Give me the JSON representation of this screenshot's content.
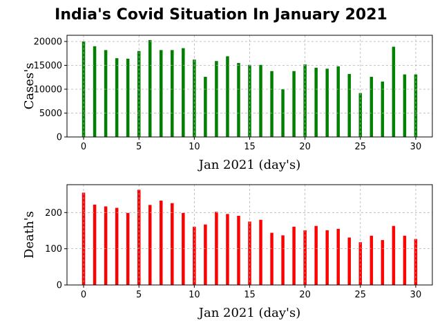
{
  "title": "India's Covid Situation In January 2021",
  "chart_data": [
    {
      "type": "bar",
      "xlabel": "Jan 2021 (day's)",
      "ylabel": "Cases's",
      "color": "#008000",
      "x": [
        0,
        1,
        2,
        3,
        4,
        5,
        6,
        7,
        8,
        9,
        10,
        11,
        12,
        13,
        14,
        15,
        16,
        17,
        18,
        19,
        20,
        21,
        22,
        23,
        24,
        25,
        26,
        27,
        28,
        29,
        30
      ],
      "values": [
        20000,
        19000,
        18200,
        16500,
        16400,
        18000,
        20300,
        18200,
        18200,
        18600,
        16200,
        12600,
        15900,
        16900,
        15500,
        15100,
        15100,
        13800,
        10000,
        13800,
        15200,
        14500,
        14300,
        14800,
        13200,
        9200,
        12600,
        11600,
        18900,
        13100,
        13100
      ],
      "xticks": [
        0,
        5,
        10,
        15,
        20,
        25,
        30
      ],
      "yticks": [
        0,
        5000,
        10000,
        15000,
        20000
      ],
      "xlim": [
        -1.5,
        31.5
      ],
      "ylim": [
        0,
        21300
      ],
      "grid": true
    },
    {
      "type": "bar",
      "xlabel": "Jan 2021 (day's)",
      "ylabel": "Death's",
      "color": "#ff0000",
      "x": [
        0,
        1,
        2,
        3,
        4,
        5,
        6,
        7,
        8,
        9,
        10,
        11,
        12,
        13,
        14,
        15,
        16,
        17,
        18,
        19,
        20,
        21,
        22,
        23,
        24,
        25,
        26,
        27,
        28,
        29,
        30
      ],
      "values": [
        255,
        222,
        217,
        213,
        199,
        263,
        221,
        233,
        226,
        199,
        161,
        167,
        202,
        196,
        191,
        175,
        180,
        144,
        137,
        161,
        151,
        163,
        151,
        155,
        131,
        118,
        136,
        124,
        163,
        136,
        127
      ],
      "xticks": [
        0,
        5,
        10,
        15,
        20,
        25,
        30
      ],
      "yticks": [
        0,
        100,
        200
      ],
      "xlim": [
        -1.5,
        31.5
      ],
      "ylim": [
        0,
        277
      ],
      "grid": true
    }
  ]
}
